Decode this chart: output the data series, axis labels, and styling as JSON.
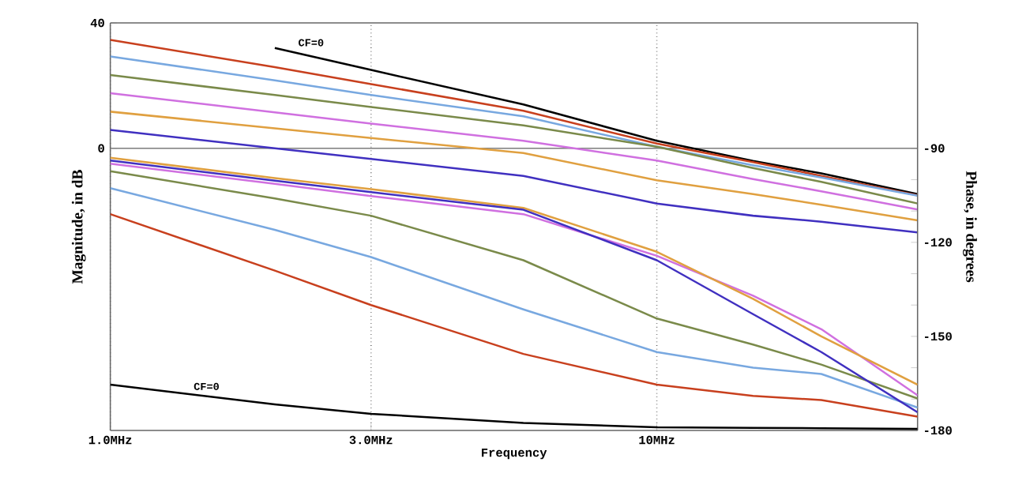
{
  "chart_data": {
    "type": "line",
    "xlabel": "Frequency",
    "ylabel": "Magnitude, in dB",
    "y2label": "Phase, in degrees",
    "log": "x",
    "grid": "x",
    "x": [
      1,
      2,
      3,
      5.7,
      10,
      15,
      20,
      30
    ],
    "xlim": [
      1,
      30
    ],
    "xticks": [
      {
        "value": 1,
        "label": "1.0MHz"
      },
      {
        "value": 3,
        "label": "3.0MHz"
      },
      {
        "value": 10,
        "label": "10MHz"
      }
    ],
    "ylim": [
      -90,
      40
    ],
    "yticks": [
      0,
      40
    ],
    "y2lim": [
      -180,
      -50
    ],
    "y2ticks": [
      -180,
      {
        "value": -170,
        "label": null
      },
      {
        "value": -160,
        "label": null
      },
      -150,
      {
        "value": -140,
        "label": null
      },
      {
        "value": -130,
        "label": null
      },
      -120,
      {
        "value": -110,
        "label": null
      },
      {
        "value": -100,
        "label": null
      },
      -90
    ],
    "ref_lines": [
      {
        "axis": "y",
        "value": 0,
        "color": "#808080"
      }
    ],
    "annotations": [
      {
        "text": "CF=0",
        "x": 2.33,
        "y": 33.7
      },
      {
        "text": "CF=0",
        "x": 1.5,
        "y": -76
      }
    ],
    "series": [
      {
        "color": "#000000",
        "values": [
          null,
          32,
          25,
          14,
          2.4,
          -4,
          -8,
          -14.6
        ]
      },
      {
        "color": "#c8401e",
        "values": [
          34.6,
          25.9,
          20.5,
          12,
          1.5,
          -4.4,
          -8.8,
          -15
        ]
      },
      {
        "color": "#78a8e0",
        "values": [
          29.3,
          21.7,
          17,
          10.2,
          0.5,
          -5.4,
          -9.3,
          -15.1
        ]
      },
      {
        "color": "#7a8a4a",
        "values": [
          23.4,
          17,
          13.2,
          7.3,
          0.5,
          -6.3,
          -10.7,
          -17.6
        ]
      },
      {
        "color": "#d070e0",
        "values": [
          17.6,
          11.5,
          7.9,
          2.4,
          -3.9,
          -9.8,
          -13.7,
          -19.5
        ]
      },
      {
        "color": "#e0a040",
        "values": [
          11.7,
          6.4,
          3.3,
          -1.5,
          -10.2,
          -14.6,
          -18,
          -23
        ]
      },
      {
        "color": "#4030c0",
        "values": [
          5.9,
          0,
          -3.4,
          -8.8,
          -17.6,
          -21.5,
          -23.4,
          -26.8
        ]
      },
      {
        "color": "#000000",
        "axis": "y2",
        "values": [
          -165.4,
          -171.7,
          -174.7,
          -177.6,
          -179,
          -179.2,
          -179.3,
          -179.5
        ]
      },
      {
        "color": "#c8401e",
        "axis": "y2",
        "values": [
          -111,
          -129,
          -140,
          -155.6,
          -165.4,
          -169,
          -170.3,
          -175.6
        ]
      },
      {
        "color": "#78a8e0",
        "axis": "y2",
        "values": [
          -102.7,
          -116,
          -124.7,
          -141.4,
          -155,
          -160,
          -162,
          -172.7
        ]
      },
      {
        "color": "#7a8a4a",
        "axis": "y2",
        "values": [
          -97.3,
          -106,
          -111.5,
          -125.7,
          -144.3,
          -152.6,
          -159,
          -169.8
        ]
      },
      {
        "color": "#d070e0",
        "axis": "y2",
        "values": [
          -94.9,
          -101.3,
          -105.2,
          -111,
          -124.3,
          -137,
          -147.7,
          -168.8
        ]
      },
      {
        "color": "#e0a040",
        "axis": "y2",
        "values": [
          -93,
          -99.5,
          -103,
          -109,
          -123,
          -138,
          -150,
          -165.4
        ]
      },
      {
        "color": "#4030c0",
        "axis": "y2",
        "values": [
          -93.9,
          -100.3,
          -104,
          -109.6,
          -125.7,
          -142.9,
          -155,
          -174.2
        ]
      }
    ]
  }
}
